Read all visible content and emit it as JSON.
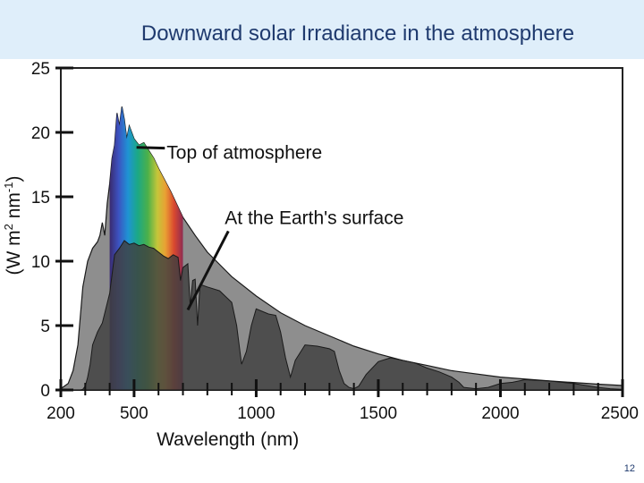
{
  "slide": {
    "title": "Downward solar Irradiance in the atmosphere",
    "page_number": "12"
  },
  "chart_data": {
    "type": "area",
    "title": "Downward solar Irradiance in the atmosphere",
    "xlabel": "Wavelength (nm)",
    "ylabel_main": "(W m",
    "ylabel_sup1": "2",
    "ylabel_mid": " nm",
    "ylabel_sup2": "-1",
    "ylabel_end": ")",
    "xlim": [
      200,
      2500
    ],
    "ylim": [
      0,
      25
    ],
    "x_ticks": [
      200,
      500,
      1000,
      1500,
      2000,
      2500
    ],
    "x_tick_labels": [
      "200",
      "500",
      "1000",
      "1500",
      "2000",
      "2500"
    ],
    "y_ticks": [
      0,
      5,
      10,
      15,
      20,
      25
    ],
    "y_tick_labels": [
      "0",
      "5",
      "10",
      "15",
      "20",
      "25"
    ],
    "visible_band_nm": [
      400,
      700
    ],
    "annotations": [
      {
        "text": "Top of atmosphere",
        "series": "Top of atmosphere",
        "x": 560,
        "y": 18.5
      },
      {
        "text": "At the Earth's surface",
        "series": "At the Earth's surface",
        "x": 820,
        "y": 6.5
      }
    ],
    "series": [
      {
        "name": "Top of atmosphere",
        "color": "#8e8e8e",
        "x": [
          200,
          230,
          250,
          270,
          290,
          310,
          330,
          350,
          360,
          370,
          380,
          390,
          400,
          410,
          420,
          430,
          440,
          450,
          460,
          470,
          480,
          490,
          500,
          520,
          540,
          560,
          580,
          600,
          650,
          700,
          750,
          800,
          900,
          1000,
          1100,
          1200,
          1300,
          1400,
          1500,
          1600,
          1700,
          1800,
          2000,
          2200,
          2400,
          2500
        ],
        "values": [
          0.1,
          0.5,
          1.5,
          3.5,
          8,
          10,
          11,
          11.5,
          12,
          13,
          12,
          14.5,
          16,
          18,
          19,
          21.5,
          20.5,
          22,
          21,
          19.5,
          20.5,
          20,
          19.5,
          19,
          19.2,
          18.6,
          18,
          17.2,
          15.4,
          13.4,
          12,
          10.7,
          8.8,
          7.3,
          6,
          5,
          4.2,
          3.4,
          2.8,
          2.3,
          1.9,
          1.5,
          1.0,
          0.7,
          0.45,
          0.35
        ]
      },
      {
        "name": "At the Earth's surface",
        "color": "#3f3f3f",
        "x": [
          200,
          280,
          290,
          300,
          310,
          320,
          330,
          350,
          370,
          400,
          420,
          440,
          460,
          480,
          500,
          520,
          540,
          560,
          580,
          600,
          620,
          640,
          660,
          680,
          690,
          700,
          720,
          730,
          740,
          750,
          760,
          770,
          800,
          850,
          900,
          920,
          940,
          960,
          980,
          1000,
          1050,
          1080,
          1100,
          1120,
          1140,
          1160,
          1200,
          1250,
          1300,
          1320,
          1340,
          1360,
          1380,
          1400,
          1420,
          1450,
          1500,
          1550,
          1600,
          1650,
          1700,
          1750,
          1800,
          1830,
          1850,
          1900,
          1950,
          2000,
          2050,
          2100,
          2200,
          2300,
          2400,
          2450,
          2500
        ],
        "values": [
          0,
          0,
          0.05,
          0.3,
          1,
          2,
          3.5,
          4.5,
          5.2,
          7.5,
          10.5,
          11,
          11.6,
          11.3,
          11.4,
          11.2,
          11.3,
          11.1,
          11,
          10.7,
          10.4,
          10.2,
          10.5,
          10.3,
          8.5,
          9.5,
          9.8,
          6.5,
          8.5,
          8.6,
          5,
          8.2,
          8,
          7.7,
          6.8,
          5,
          2,
          3,
          5,
          6.3,
          5.9,
          5.8,
          4.5,
          2.5,
          1,
          2.3,
          3.5,
          3.4,
          3.2,
          3,
          1.5,
          0.5,
          0.2,
          0.1,
          0.3,
          1.2,
          2.2,
          2.5,
          2.3,
          2.1,
          1.7,
          1.4,
          1,
          0.6,
          0.2,
          0.1,
          0.2,
          0.5,
          0.6,
          0.8,
          0.7,
          0.5,
          0.2,
          0.1,
          0.05
        ]
      }
    ]
  }
}
